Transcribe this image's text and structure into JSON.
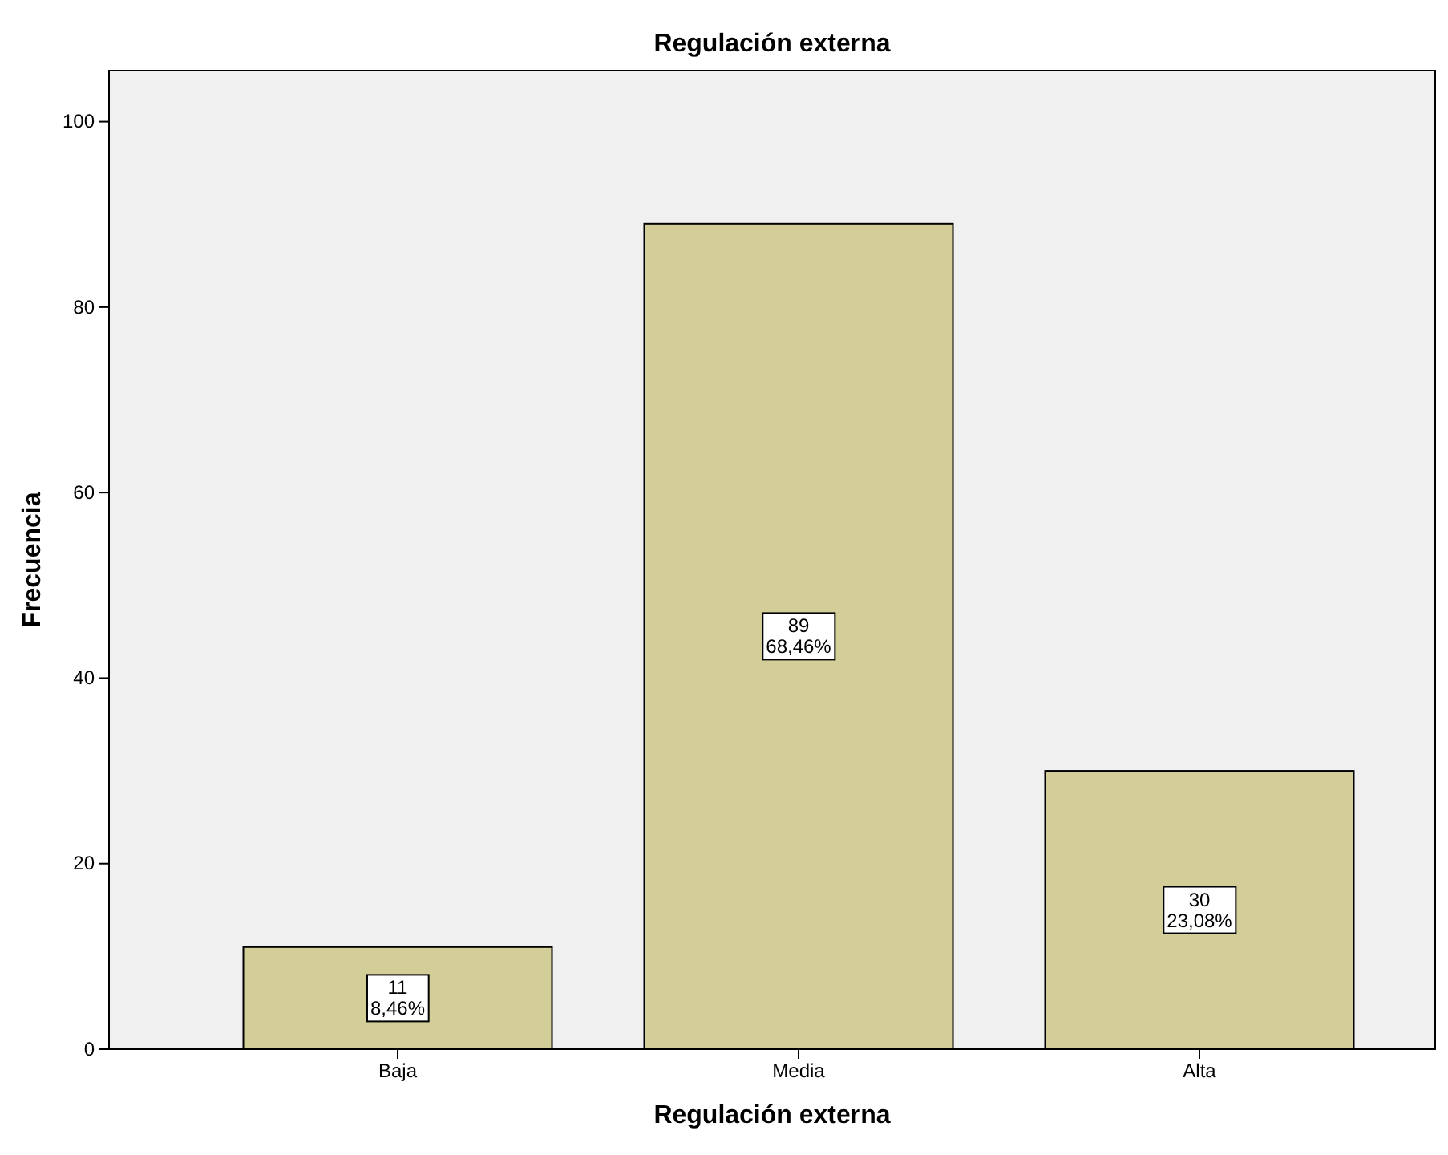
{
  "chart_data": {
    "type": "bar",
    "title": "Regulación externa",
    "xlabel": "Regulación externa",
    "ylabel": "Frecuencia",
    "categories": [
      "Baja",
      "Media",
      "Alta"
    ],
    "values": [
      11,
      89,
      30
    ],
    "value_labels": [
      "11\n8,46%",
      "89\n68,46%",
      "30\n23,08%"
    ],
    "color": "#d3ce97",
    "ylim": [
      0,
      105.5
    ],
    "yticks": [
      0,
      20,
      40,
      60,
      80,
      100
    ],
    "grid": false
  }
}
